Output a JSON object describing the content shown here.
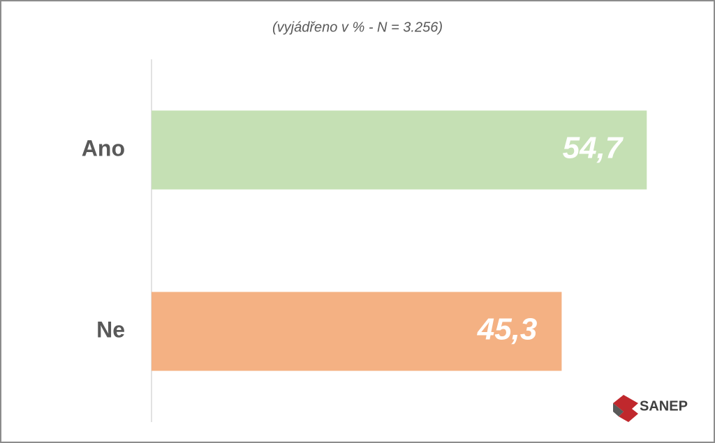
{
  "chart_data": {
    "type": "bar",
    "orientation": "horizontal",
    "subtitle": "(vyjádřeno v % - N = 3.256)",
    "categories": [
      "Ano",
      "Ne"
    ],
    "values": [
      54.7,
      45.3
    ],
    "value_labels": [
      "54,7",
      "45,3"
    ],
    "colors": [
      "#c5e0b4",
      "#f4b183"
    ],
    "xlim": [
      0,
      60
    ],
    "logo": "SANEP"
  }
}
